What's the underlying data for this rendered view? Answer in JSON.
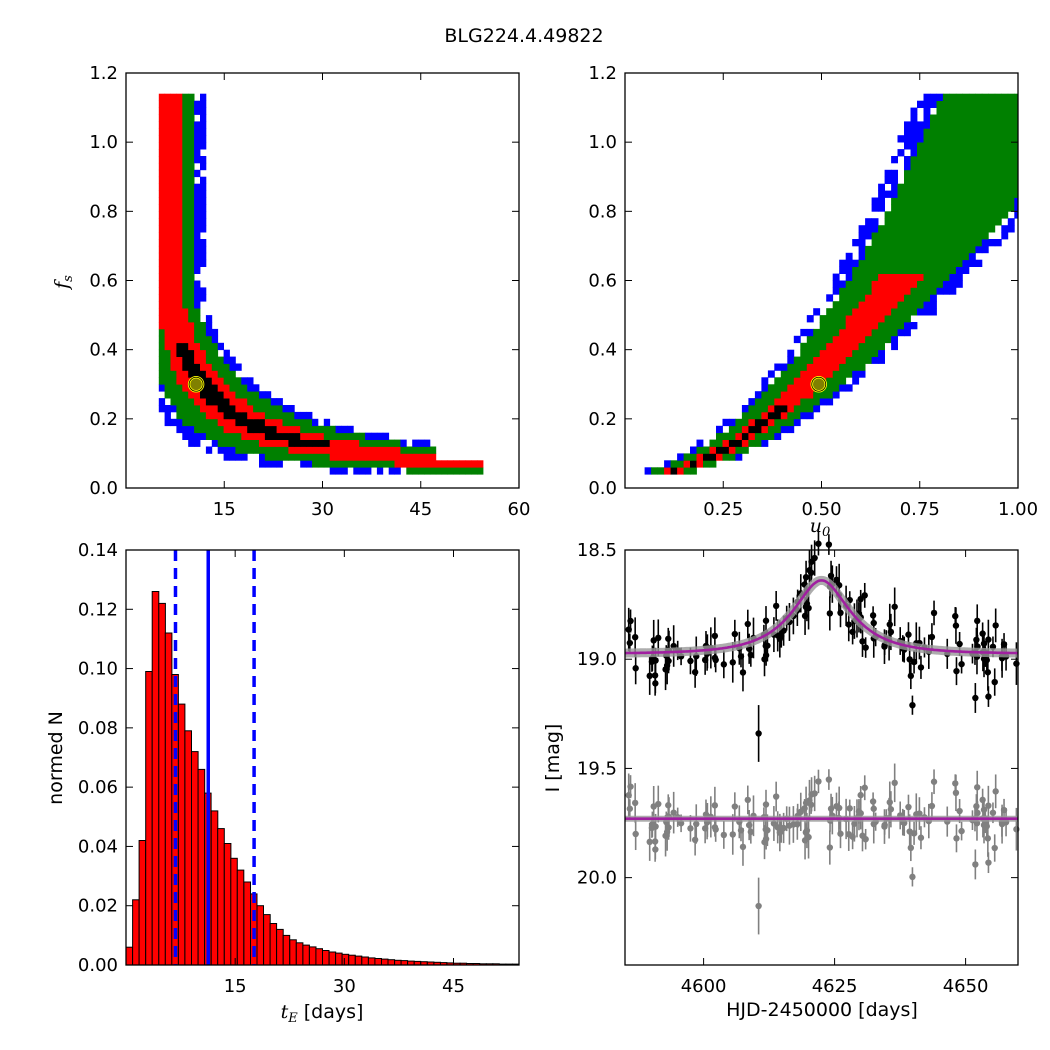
{
  "title": "BLG224.4.49822",
  "colors": {
    "sigma1": "#000000",
    "sigma2": "#ff0000",
    "sigma3": "#008000",
    "sigma4": "#0000ff",
    "best_fit_fill": "#808000",
    "best_fit_edge": "#ffff00",
    "hist_fill": "#ff0000",
    "model_magenta": "#a01fa0",
    "data_black": "#000000",
    "data_grey": "#808080"
  },
  "chart_data": [
    {
      "type": "heatmap",
      "panel": "tE-fs",
      "xlabel": "",
      "ylabel": "f_s",
      "xlim": [
        0,
        60
      ],
      "ylim": [
        0,
        1.2
      ],
      "xticks": [
        "15",
        "30",
        "45",
        "60"
      ],
      "yticks": [
        "0.0",
        "0.2",
        "0.4",
        "0.6",
        "0.8",
        "1.0",
        "1.2"
      ],
      "best_fit": {
        "x": 10.7,
        "y": 0.3
      },
      "curve": {
        "a": 3.3,
        "xmin": 5.2,
        "xmax": 54
      }
    },
    {
      "type": "heatmap",
      "panel": "u0-fs",
      "xlabel": "u_0",
      "ylabel": "",
      "xlim": [
        0,
        1.0
      ],
      "ylim": [
        0,
        1.2
      ],
      "xticks": [
        "0.25",
        "0.50",
        "0.75",
        "1.00"
      ],
      "yticks": [
        "0.0",
        "0.2",
        "0.4",
        "0.6",
        "0.8",
        "1.0",
        "1.2"
      ],
      "best_fit": {
        "x": 0.493,
        "y": 0.3
      },
      "curve": {
        "xmin": 0.06,
        "xmax": 1.0
      }
    },
    {
      "type": "bar",
      "panel": "tE-histogram",
      "xlabel_math": "t_E",
      "xlabel_text": " [days]",
      "ylabel": "normed N",
      "xlim": [
        0,
        54
      ],
      "ylim": [
        0,
        0.14
      ],
      "xticks": [
        "15",
        "30",
        "45"
      ],
      "yticks": [
        "0.00",
        "0.02",
        "0.04",
        "0.06",
        "0.08",
        "0.10",
        "0.12",
        "0.14"
      ],
      "bin_width": 0.9,
      "bin_start": 0,
      "values": [
        0.006,
        0.022,
        0.042,
        0.099,
        0.126,
        0.122,
        0.112,
        0.098,
        0.088,
        0.079,
        0.072,
        0.066,
        0.058,
        0.052,
        0.046,
        0.041,
        0.036,
        0.032,
        0.028,
        0.024,
        0.02,
        0.017,
        0.014,
        0.012,
        0.01,
        0.0085,
        0.0075,
        0.0067,
        0.0061,
        0.0055,
        0.0049,
        0.0044,
        0.004,
        0.0036,
        0.0033,
        0.003,
        0.0027,
        0.0024,
        0.0022,
        0.002,
        0.0018,
        0.0016,
        0.0015,
        0.0013,
        0.0012,
        0.0011,
        0.001,
        0.0009,
        0.0008,
        0.0007,
        0.0006,
        0.0006,
        0.0005,
        0.0005,
        0.0004,
        0.0004,
        0.0004,
        0.0003,
        0.0003,
        0.0003
      ],
      "median": 11.3,
      "lower": 6.8,
      "upper": 17.6
    },
    {
      "type": "scatter",
      "panel": "lightcurve",
      "xlabel": "HJD-2450000 [days]",
      "ylabel": "I [mag]",
      "xlim": [
        4585,
        4660
      ],
      "ylim": [
        20.4,
        18.5
      ],
      "xticks": [
        "4600",
        "4625",
        "4650"
      ],
      "yticks": [
        "18.5",
        "19.0",
        "19.5",
        "20.0"
      ],
      "model": {
        "t0": 4622.5,
        "tE": 10.7,
        "u0": 0.493,
        "fs": 0.3,
        "I_base": 18.975
      },
      "residual_offset": 19.73
    }
  ]
}
